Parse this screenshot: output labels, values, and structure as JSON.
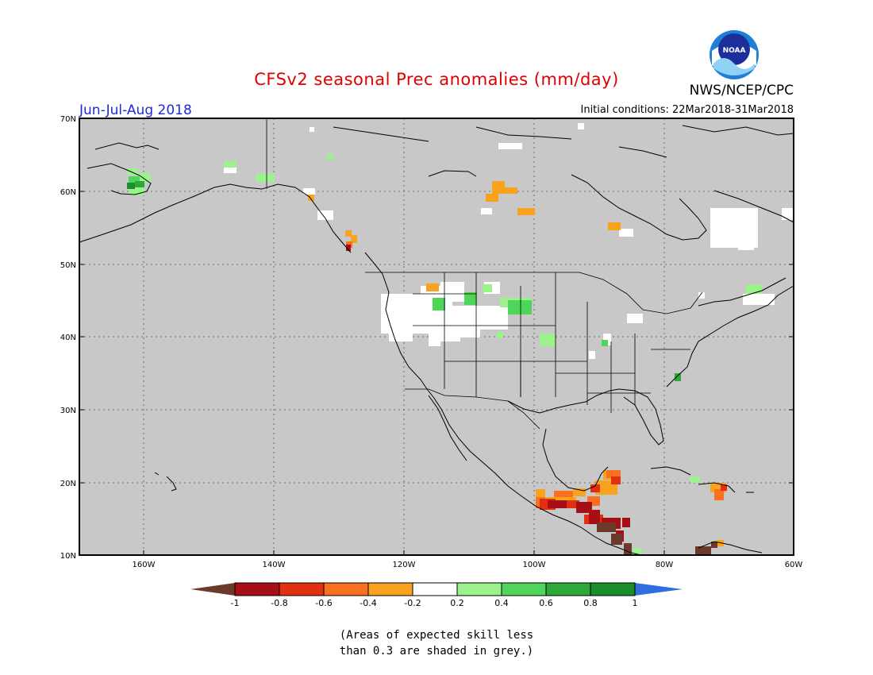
{
  "header": {
    "title": "CFSv2 seasonal Prec anomalies (mm/day)",
    "organization": "NWS/NCEP/CPC",
    "logo_text": "NOAA",
    "season": "Jun-Jul-Aug 2018",
    "initial_conditions": "Initial conditions: 22Mar2018-31Mar2018"
  },
  "map": {
    "lat_labels": [
      "70N",
      "60N",
      "50N",
      "40N",
      "30N",
      "20N",
      "10N"
    ],
    "lon_labels": [
      "160W",
      "140W",
      "120W",
      "100W",
      "80W",
      "60W"
    ],
    "ocean_color": "#c8c8c8"
  },
  "colorbar": {
    "labels": [
      "-1",
      "-0.8",
      "-0.6",
      "-0.4",
      "-0.2",
      "0.2",
      "0.4",
      "0.6",
      "0.8",
      "1"
    ],
    "colors": [
      "#6b3a2a",
      "#a50f15",
      "#e03010",
      "#f97020",
      "#f9a21e",
      "#ffffff",
      "#9cf28c",
      "#4fd65a",
      "#2fa83a",
      "#1a8e2a",
      "#2f6fe0"
    ]
  },
  "caption": {
    "line1": "(Areas of expected skill less",
    "line2": "than 0.3 are shaded in grey.)"
  }
}
